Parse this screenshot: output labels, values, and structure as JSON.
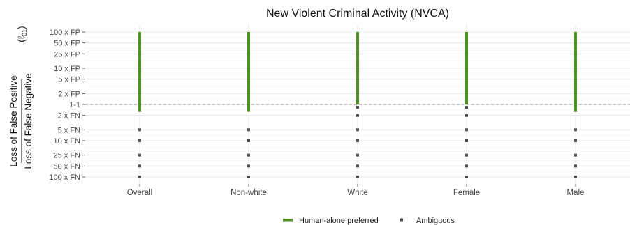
{
  "chart_data": {
    "type": "scatter",
    "title": "New Violent Criminal Activity (NVCA)",
    "ylabel_numerator": "Loss of False Positive",
    "ylabel_denominator": "Loss of False Negative",
    "ylabel_symbol": "(ℓ",
    "ylabel_symbol_sub": "01",
    "ylabel_symbol_close": ")",
    "categories": [
      "Overall",
      "Non-white",
      "White",
      "Female",
      "Male"
    ],
    "y_ticks": [
      "100 x FP",
      "50 x FP",
      "25 x FP",
      "10 x FP",
      "5 x FP",
      "2 x FP",
      "1-1",
      "2 x FN",
      "5 x FN",
      "10 x FN",
      "25 x FN",
      "50 x FN",
      "100 x FN"
    ],
    "y_scale": "log ratio (FP loss / FN loss)",
    "reference_line": "1-1",
    "grid": true,
    "legend_position": "bottom",
    "series": [
      {
        "name": "Human-alone preferred",
        "style": "segment",
        "color": "#4d9221",
        "ranges": [
          {
            "category": "Overall",
            "from": "100 x FP",
            "to": "1.6 x FN"
          },
          {
            "category": "Non-white",
            "from": "100 x FP",
            "to": "1.6 x FN"
          },
          {
            "category": "White",
            "from": "100 x FP",
            "to": "1-1"
          },
          {
            "category": "Female",
            "from": "100 x FP",
            "to": "1-1"
          },
          {
            "category": "Male",
            "from": "100 x FP",
            "to": "1.6 x FN"
          }
        ]
      },
      {
        "name": "Ambiguous",
        "style": "point",
        "color": "#4d4d4d",
        "points": [
          {
            "category": "Overall",
            "values": [
              "5 x FN",
              "10 x FN",
              "25 x FN",
              "50 x FN",
              "100 x FN"
            ]
          },
          {
            "category": "Non-white",
            "values": [
              "5 x FN",
              "10 x FN",
              "25 x FN",
              "50 x FN",
              "100 x FN"
            ]
          },
          {
            "category": "White",
            "values": [
              "1.2 x FN",
              "2 x FN",
              "5 x FN",
              "10 x FN",
              "25 x FN",
              "50 x FN",
              "100 x FN"
            ]
          },
          {
            "category": "Female",
            "values": [
              "1.2 x FN",
              "2 x FN",
              "5 x FN",
              "10 x FN",
              "25 x FN",
              "50 x FN",
              "100 x FN"
            ]
          },
          {
            "category": "Male",
            "values": [
              "5 x FN",
              "10 x FN",
              "25 x FN",
              "50 x FN",
              "100 x FN"
            ]
          }
        ]
      }
    ]
  }
}
